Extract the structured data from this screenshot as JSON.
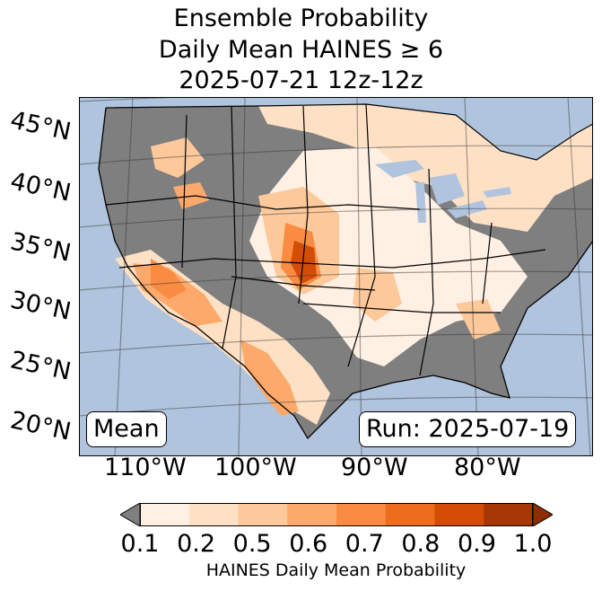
{
  "title": {
    "line1": "Ensemble Probability",
    "line2": "Daily Mean HAINES ≥ 6",
    "line3": "2025-07-21 12z-12z"
  },
  "map": {
    "lat_labels": [
      "45°N",
      "40°N",
      "35°N",
      "30°N",
      "25°N",
      "20°N"
    ],
    "lon_labels": [
      "110°W",
      "100°W",
      "90°W",
      "80°W"
    ],
    "mean_label": "Mean",
    "run_label": "Run: 2025-07-19",
    "colors": {
      "ocean": "#b0c4de",
      "land_nodata": "#7f7f7f",
      "border": "#000000"
    }
  },
  "colorbar": {
    "ticks": [
      "0.1",
      "0.2",
      "0.5",
      "0.6",
      "0.7",
      "0.8",
      "0.9",
      "1.0"
    ],
    "label": "HAINES Daily Mean Probability",
    "under_color": "#7f7f7f",
    "bins": [
      "#fff0e3",
      "#fee1c5",
      "#fdc89a",
      "#fda96b",
      "#f98c42",
      "#ec6d1b",
      "#d44d06",
      "#a63603"
    ],
    "over_color": "#8c2d04"
  }
}
